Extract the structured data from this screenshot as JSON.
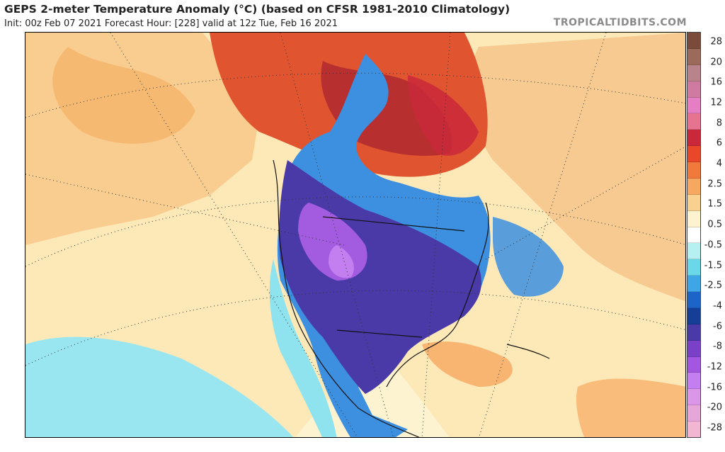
{
  "header": {
    "title": "GEPS 2-meter Temperature Anomaly (°C) (based on CFSR 1981-2010 Climatology)",
    "subtitle": "Init: 00z Feb 07 2021   Forecast Hour: [228]   valid at 12z Tue, Feb 16 2021",
    "brand": "TROPICALTIDBITS.COM"
  },
  "colorbar": {
    "tick_labels": [
      "28",
      "20",
      "16",
      "12",
      "8",
      "6",
      "4",
      "2.5",
      "1.5",
      "0.5",
      "-0.5",
      "-1.5",
      "-2.5",
      "-4",
      "-6",
      "-8",
      "-12",
      "-16",
      "-20",
      "-28"
    ],
    "colors": [
      "#7a4a3a",
      "#9c6a5a",
      "#b8838a",
      "#cf7aa0",
      "#e57ec2",
      "#e67390",
      "#c9283a",
      "#e8472a",
      "#f07a3c",
      "#f6a860",
      "#f8d090",
      "#fdf3d0",
      "#ffffff",
      "#b7f0f0",
      "#6ad8e8",
      "#3ea6e6",
      "#1d64c8",
      "#153e96",
      "#4a3aa8",
      "#7a40c8",
      "#a456e0",
      "#c37ef0",
      "#dc96e8",
      "#e6a6d8",
      "#f2b6d2"
    ]
  },
  "map": {
    "colors": {
      "ocean_warm": "#fde9b8",
      "warm_orange": "#f5b46a",
      "warm_red": "#e0552f",
      "deep_red": "#b32c30",
      "cool_cyan": "#8fe3ef",
      "cool_blue": "#3d8fe0",
      "deep_blue": "#2b4fb8",
      "purple": "#6a3fc8",
      "violet": "#a35ce0"
    }
  }
}
